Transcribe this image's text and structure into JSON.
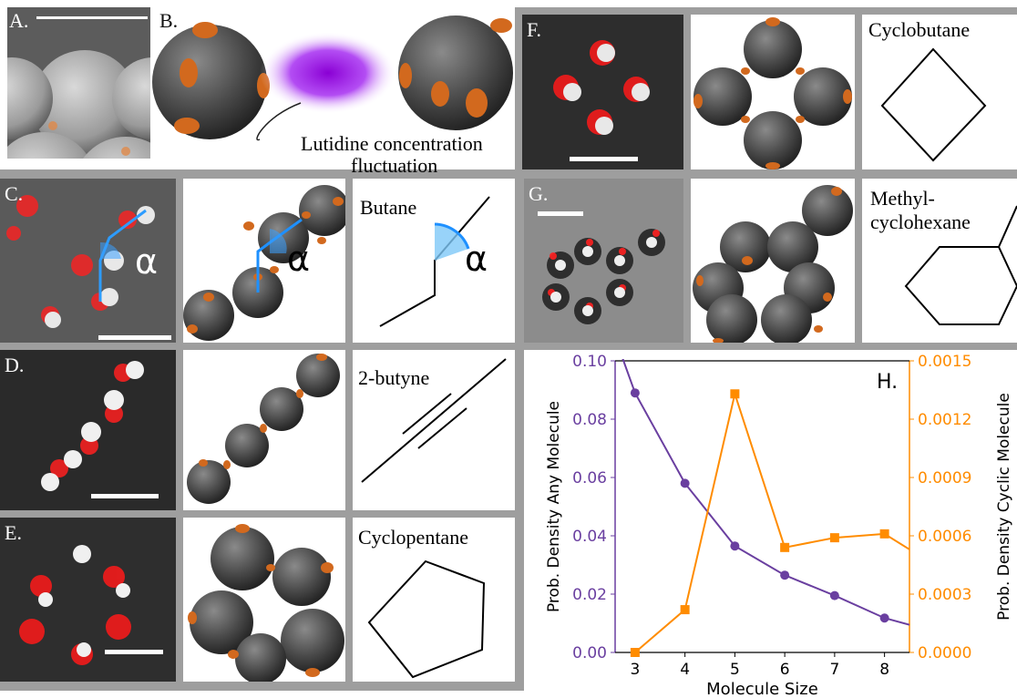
{
  "labels": {
    "A": "A.",
    "B": "B.",
    "C": "C.",
    "D": "D.",
    "E": "E.",
    "F": "F.",
    "G": "G.",
    "H": "H."
  },
  "b_caption": [
    "Lutidine concentration",
    "fluctuation"
  ],
  "molecules": {
    "C": "Butane",
    "D": "2-butyne",
    "E": "Cyclopentane",
    "F": "Cyclobutane",
    "G": [
      "Methyl-",
      "cyclohexane"
    ]
  },
  "alpha": "α",
  "colors": {
    "frame": "#9e9e9e",
    "purple": "#6a3fa0",
    "orange": "#ff8c00",
    "patch": "#d2691e",
    "sphere": "#4a4a4a",
    "angle": "#1e90ff"
  },
  "chart_data": {
    "type": "line",
    "xlabel": "Molecule Size",
    "ylabel_left": "Prob. Density Any Molecule",
    "ylabel_right": "Prob. Density Cyclic Molecule",
    "xlim": [
      2.6,
      8.5
    ],
    "x_ticks": [
      3,
      4,
      5,
      6,
      7,
      8
    ],
    "ylim_left": [
      0.0,
      0.1
    ],
    "ylim_right": [
      0.0,
      0.0015
    ],
    "yticks_left": [
      "0.00",
      "0.02",
      "0.04",
      "0.06",
      "0.08",
      "0.10"
    ],
    "yticks_right": [
      "0.0000",
      "0.0003",
      "0.0006",
      "0.0009",
      "0.0012",
      "0.0015"
    ],
    "annotation": "H.",
    "series": [
      {
        "axis": "left",
        "color": "#6a3fa0",
        "marker": "circle",
        "x": [
          2.6,
          3,
          4,
          5,
          6,
          7,
          8,
          8.5
        ],
        "y": [
          0.108,
          0.089,
          0.058,
          0.0365,
          0.0265,
          0.0195,
          0.0118,
          0.0095
        ],
        "marker_x": [
          3,
          4,
          5,
          6,
          7,
          8
        ]
      },
      {
        "axis": "right",
        "color": "#ff8c00",
        "marker": "square",
        "x": [
          3,
          4,
          5,
          6,
          7,
          8,
          8.5
        ],
        "y": [
          0.0,
          0.00022,
          0.00133,
          0.00054,
          0.00059,
          0.00061,
          0.00053
        ],
        "marker_x": [
          3,
          4,
          5,
          6,
          7,
          8
        ]
      }
    ]
  }
}
